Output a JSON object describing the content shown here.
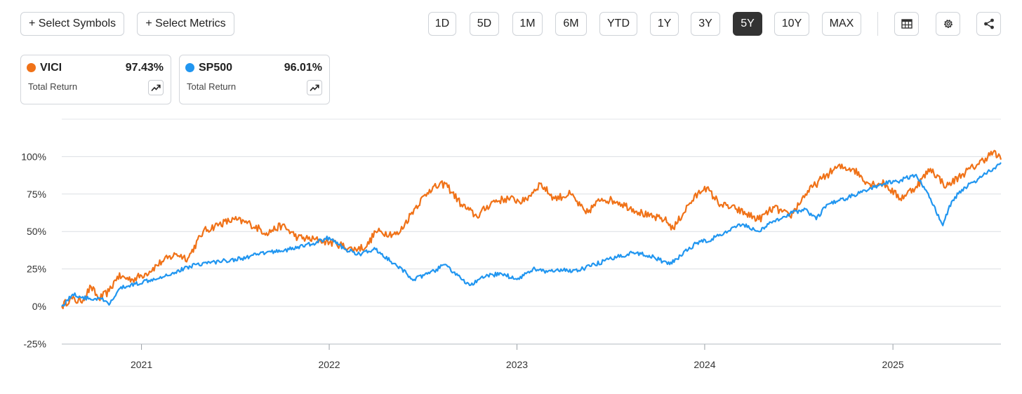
{
  "toolbar": {
    "select_symbols": "+ Select Symbols",
    "select_metrics": "+ Select Metrics",
    "ranges": [
      "1D",
      "5D",
      "1M",
      "6M",
      "YTD",
      "1Y",
      "3Y",
      "5Y",
      "10Y",
      "MAX"
    ],
    "active_range": "5Y",
    "icons": [
      "table-icon",
      "gear-icon",
      "share-icon"
    ]
  },
  "legend": [
    {
      "symbol": "VICI",
      "value": "97.43%",
      "metric": "Total Return",
      "color": "#f07218"
    },
    {
      "symbol": "SP500",
      "value": "96.01%",
      "metric": "Total Return",
      "color": "#2196f0"
    }
  ],
  "chart_data": {
    "type": "line",
    "title": "",
    "xlabel": "",
    "ylabel": "",
    "x_ticks": [
      "2021",
      "2022",
      "2023",
      "2024",
      "2025"
    ],
    "y_ticks": [
      "-25%",
      "0%",
      "25%",
      "50%",
      "75%",
      "100%"
    ],
    "ylim": [
      -25,
      100
    ],
    "xlim": [
      "2020-07-30",
      "2025-07-30"
    ],
    "grid": true,
    "series": [
      {
        "name": "VICI",
        "color": "#f07218",
        "points": [
          [
            "2020-07-30",
            0
          ],
          [
            "2020-08-15",
            5
          ],
          [
            "2020-09-05",
            3
          ],
          [
            "2020-09-25",
            13
          ],
          [
            "2020-10-10",
            5
          ],
          [
            "2020-10-30",
            10
          ],
          [
            "2020-11-15",
            20
          ],
          [
            "2020-12-15",
            18
          ],
          [
            "2021-01-10",
            22
          ],
          [
            "2021-02-10",
            30
          ],
          [
            "2021-03-10",
            35
          ],
          [
            "2021-04-01",
            32
          ],
          [
            "2021-05-01",
            50
          ],
          [
            "2021-06-01",
            55
          ],
          [
            "2021-07-01",
            58
          ],
          [
            "2021-08-01",
            55
          ],
          [
            "2021-09-01",
            49
          ],
          [
            "2021-10-01",
            54
          ],
          [
            "2021-11-01",
            46
          ],
          [
            "2021-12-15",
            44
          ],
          [
            "2022-01-15",
            42
          ],
          [
            "2022-02-15",
            38
          ],
          [
            "2022-03-15",
            40
          ],
          [
            "2022-04-01",
            50
          ],
          [
            "2022-05-15",
            48
          ],
          [
            "2022-06-15",
            65
          ],
          [
            "2022-07-15",
            78
          ],
          [
            "2022-08-15",
            82
          ],
          [
            "2022-09-15",
            68
          ],
          [
            "2022-10-15",
            60
          ],
          [
            "2022-11-15",
            70
          ],
          [
            "2022-12-15",
            72
          ],
          [
            "2023-01-15",
            70
          ],
          [
            "2023-02-15",
            82
          ],
          [
            "2023-03-15",
            72
          ],
          [
            "2023-04-15",
            75
          ],
          [
            "2023-05-15",
            62
          ],
          [
            "2023-06-15",
            72
          ],
          [
            "2023-07-15",
            70
          ],
          [
            "2023-08-15",
            65
          ],
          [
            "2023-09-15",
            60
          ],
          [
            "2023-10-15",
            58
          ],
          [
            "2023-11-01",
            52
          ],
          [
            "2023-12-01",
            68
          ],
          [
            "2024-01-01",
            80
          ],
          [
            "2024-02-01",
            68
          ],
          [
            "2024-03-01",
            65
          ],
          [
            "2024-04-15",
            58
          ],
          [
            "2024-05-15",
            66
          ],
          [
            "2024-06-15",
            60
          ],
          [
            "2024-07-15",
            75
          ],
          [
            "2024-08-15",
            85
          ],
          [
            "2024-09-15",
            93
          ],
          [
            "2024-10-15",
            92
          ],
          [
            "2024-11-15",
            82
          ],
          [
            "2024-12-15",
            82
          ],
          [
            "2025-01-15",
            72
          ],
          [
            "2025-02-15",
            80
          ],
          [
            "2025-03-15",
            92
          ],
          [
            "2025-04-15",
            80
          ],
          [
            "2025-05-15",
            88
          ],
          [
            "2025-06-15",
            95
          ],
          [
            "2025-07-15",
            103
          ],
          [
            "2025-07-30",
            98
          ]
        ]
      },
      {
        "name": "SP500",
        "color": "#2196f0",
        "points": [
          [
            "2020-07-30",
            0
          ],
          [
            "2020-08-20",
            8
          ],
          [
            "2020-09-20",
            5
          ],
          [
            "2020-10-15",
            5
          ],
          [
            "2020-10-30",
            1
          ],
          [
            "2020-11-20",
            12
          ],
          [
            "2020-12-20",
            15
          ],
          [
            "2021-01-20",
            18
          ],
          [
            "2021-03-01",
            22
          ],
          [
            "2021-04-15",
            28
          ],
          [
            "2021-06-01",
            30
          ],
          [
            "2021-07-15",
            32
          ],
          [
            "2021-09-01",
            36
          ],
          [
            "2021-10-15",
            38
          ],
          [
            "2021-12-01",
            42
          ],
          [
            "2022-01-01",
            46
          ],
          [
            "2022-02-01",
            38
          ],
          [
            "2022-03-01",
            35
          ],
          [
            "2022-04-01",
            38
          ],
          [
            "2022-05-01",
            30
          ],
          [
            "2022-06-15",
            18
          ],
          [
            "2022-07-15",
            22
          ],
          [
            "2022-08-15",
            28
          ],
          [
            "2022-09-15",
            18
          ],
          [
            "2022-10-01",
            14
          ],
          [
            "2022-11-01",
            20
          ],
          [
            "2022-12-01",
            22
          ],
          [
            "2023-01-01",
            18
          ],
          [
            "2023-02-01",
            25
          ],
          [
            "2023-03-01",
            23
          ],
          [
            "2023-04-01",
            24
          ],
          [
            "2023-05-01",
            24
          ],
          [
            "2023-06-01",
            28
          ],
          [
            "2023-07-15",
            33
          ],
          [
            "2023-08-15",
            36
          ],
          [
            "2023-09-15",
            34
          ],
          [
            "2023-10-25",
            28
          ],
          [
            "2023-11-15",
            34
          ],
          [
            "2023-12-15",
            42
          ],
          [
            "2024-01-15",
            45
          ],
          [
            "2024-02-15",
            50
          ],
          [
            "2024-03-15",
            55
          ],
          [
            "2024-04-15",
            50
          ],
          [
            "2024-05-15",
            57
          ],
          [
            "2024-06-15",
            62
          ],
          [
            "2024-07-15",
            65
          ],
          [
            "2024-08-05",
            58
          ],
          [
            "2024-08-25",
            68
          ],
          [
            "2024-09-15",
            70
          ],
          [
            "2024-10-15",
            74
          ],
          [
            "2024-11-15",
            78
          ],
          [
            "2024-12-15",
            82
          ],
          [
            "2025-01-15",
            84
          ],
          [
            "2025-02-15",
            88
          ],
          [
            "2025-03-15",
            72
          ],
          [
            "2025-04-08",
            54
          ],
          [
            "2025-04-25",
            70
          ],
          [
            "2025-05-15",
            78
          ],
          [
            "2025-06-15",
            85
          ],
          [
            "2025-07-15",
            92
          ],
          [
            "2025-07-30",
            96
          ]
        ]
      }
    ]
  }
}
